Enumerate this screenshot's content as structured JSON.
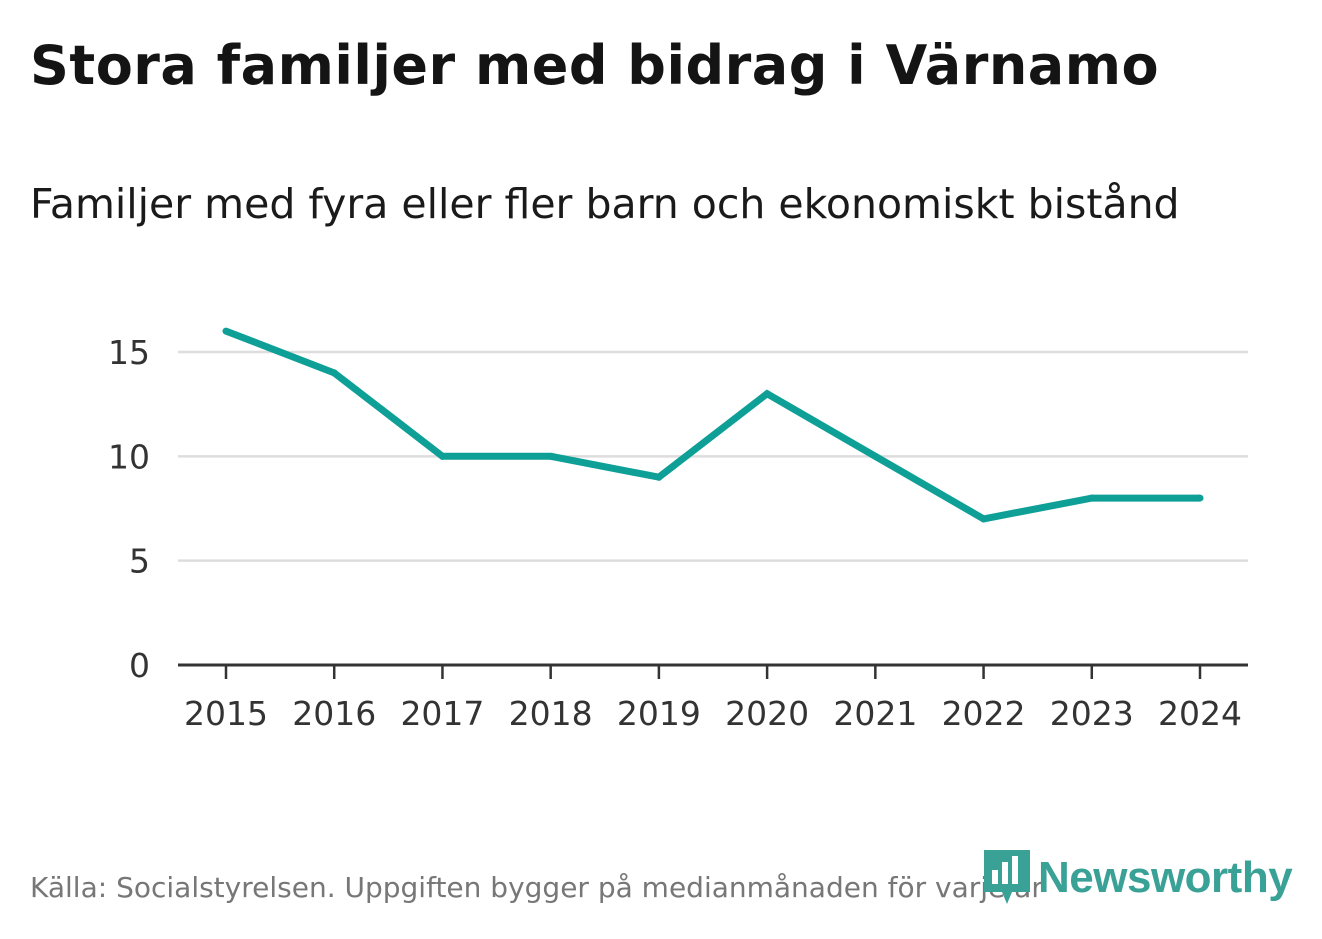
{
  "title": "Stora familjer med bidrag i Värnamo",
  "subtitle": "Familjer med fyra eller fler barn och ekonomiskt bistånd",
  "footer": "Källa: Socialstyrelsen. Uppgiften bygger på medianmånaden för varje år",
  "logo": {
    "text": "Newsworthy",
    "icon": "newsworthy-logo-icon"
  },
  "colors": {
    "line": "#0e9f97",
    "grid": "#dddddd",
    "axis": "#333333",
    "text": "#333333",
    "logo": "#3aa197"
  },
  "chart_data": {
    "type": "line",
    "title": "Stora familjer med bidrag i Värnamo",
    "subtitle": "Familjer med fyra eller fler barn och ekonomiskt bistånd",
    "xlabel": "",
    "ylabel": "",
    "categories": [
      "2015",
      "2016",
      "2017",
      "2018",
      "2019",
      "2020",
      "2021",
      "2022",
      "2023",
      "2024"
    ],
    "series": [
      {
        "name": "Familjer med fyra eller fler barn och ekonomiskt bistånd",
        "values": [
          16,
          14,
          10,
          10,
          9,
          13,
          10,
          7,
          8,
          8
        ]
      }
    ],
    "yticks": [
      0,
      5,
      10,
      15
    ],
    "ylim": [
      0,
      15
    ],
    "grid": true,
    "legend": "none"
  }
}
